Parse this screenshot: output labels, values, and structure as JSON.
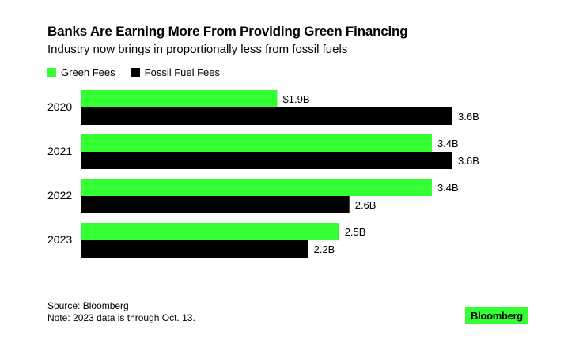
{
  "title": "Banks Are Earning More From Providing Green Financing",
  "subtitle": "Industry now brings in proportionally less from fossil fuels",
  "colors": {
    "green": "#33ff33",
    "black": "#000000",
    "logo_bg": "#33ff33"
  },
  "legend": [
    {
      "label": "Green Fees",
      "color": "#33ff33"
    },
    {
      "label": "Fossil Fuel Fees",
      "color": "#000000"
    }
  ],
  "chart_data": {
    "type": "bar",
    "orientation": "horizontal",
    "categories": [
      "2020",
      "2021",
      "2022",
      "2023"
    ],
    "series": [
      {
        "name": "Green Fees",
        "values": [
          1.9,
          3.4,
          3.4,
          2.5
        ],
        "labels": [
          "$1.9B",
          "3.4B",
          "3.4B",
          "2.5B"
        ]
      },
      {
        "name": "Fossil Fuel Fees",
        "values": [
          3.6,
          3.6,
          2.6,
          2.2
        ],
        "labels": [
          "3.6B",
          "3.6B",
          "2.6B",
          "2.2B"
        ]
      }
    ],
    "xlim": [
      0,
      3.6
    ],
    "grid": false,
    "legend_position": "top-left"
  },
  "footer": {
    "source": "Source: Bloomberg",
    "note": "Note: 2023 data is through Oct. 13."
  },
  "logo_text": "Bloomberg"
}
